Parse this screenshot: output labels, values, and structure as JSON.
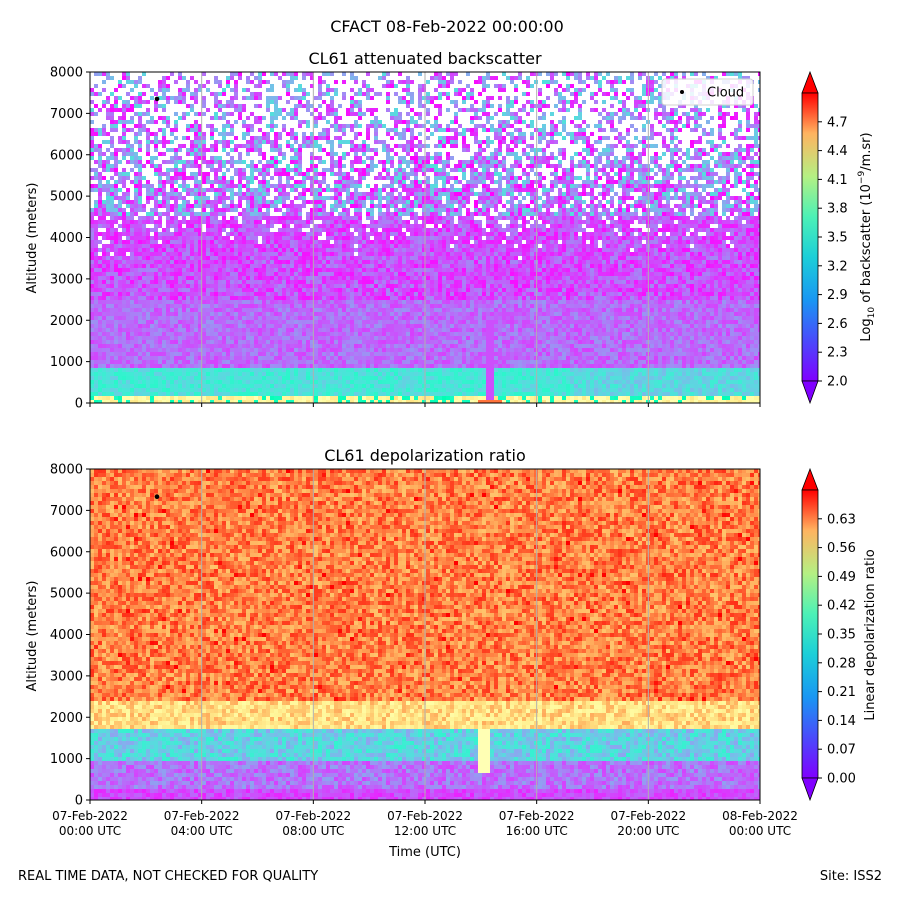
{
  "figure": {
    "title": "CFACT 08-Feb-2022 00:00:00",
    "footer_left": "REAL TIME DATA, NOT CHECKED FOR QUALITY",
    "footer_right": "Site: ISS2"
  },
  "chart_data": [
    {
      "type": "heatmap",
      "title": "CL61 attenuated backscatter",
      "xlabel": "",
      "ylabel": "Altitude (meters)",
      "ylim": [
        0,
        8000
      ],
      "y_ticks": [
        0,
        1000,
        2000,
        3000,
        4000,
        5000,
        6000,
        7000,
        8000
      ],
      "x_range_hours": [
        0,
        24
      ],
      "x_tick_hours": [
        0,
        4,
        8,
        12,
        16,
        20,
        24
      ],
      "grid": "vertical",
      "legend": {
        "location": "top-right",
        "entries": [
          "Cloud"
        ]
      },
      "cloud_points": [
        {
          "time_hours": 2.4,
          "altitude": 7350
        }
      ],
      "colorbar": {
        "label_pre": "Log",
        "label_sub": "10",
        "label_mid": " of backscatter (10",
        "label_sup": "−9",
        "label_post": "/m.sr)",
        "range": [
          2.0,
          5.0
        ],
        "ticks": [
          "2.0",
          "2.3",
          "2.6",
          "2.9",
          "3.2",
          "3.5",
          "3.8",
          "4.1",
          "4.4",
          "4.7"
        ],
        "extend": "both",
        "colormap": "rainbow"
      }
    },
    {
      "type": "heatmap",
      "title": "CL61 depolarization ratio",
      "xlabel": "Time (UTC)",
      "ylabel": "Altitude (meters)",
      "ylim": [
        0,
        8000
      ],
      "y_ticks": [
        0,
        1000,
        2000,
        3000,
        4000,
        5000,
        6000,
        7000,
        8000
      ],
      "x_range_hours": [
        0,
        24
      ],
      "x_tick_hours": [
        0,
        4,
        8,
        12,
        16,
        20,
        24
      ],
      "x_tick_labels": [
        [
          "07-Feb-2022",
          "00:00 UTC"
        ],
        [
          "07-Feb-2022",
          "04:00 UTC"
        ],
        [
          "07-Feb-2022",
          "08:00 UTC"
        ],
        [
          "07-Feb-2022",
          "12:00 UTC"
        ],
        [
          "07-Feb-2022",
          "16:00 UTC"
        ],
        [
          "07-Feb-2022",
          "20:00 UTC"
        ],
        [
          "08-Feb-2022",
          "00:00 UTC"
        ]
      ],
      "grid": "vertical",
      "cloud_points": [
        {
          "time_hours": 2.4,
          "altitude": 7330
        }
      ],
      "colorbar": {
        "label": "Linear depolarization ratio",
        "range": [
          0.0,
          0.7
        ],
        "ticks": [
          "0.00",
          "0.07",
          "0.14",
          "0.21",
          "0.28",
          "0.35",
          "0.42",
          "0.49",
          "0.56",
          "0.63"
        ],
        "extend": "both",
        "colormap": "rainbow"
      }
    }
  ]
}
